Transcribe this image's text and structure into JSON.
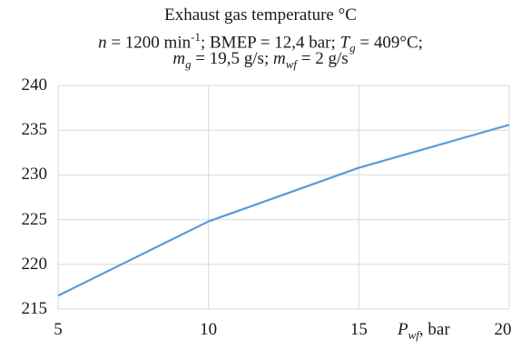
{
  "chart_data": {
    "type": "line",
    "title_lines": [
      "Exhaust gas temperature °C",
      "n = 1200 min-1; BMEP = 12,4 bar; Tg = 409°C;",
      "mg = 19,5 g/s; mwf = 2 g/s"
    ],
    "title_parts": {
      "line1": "Exhaust gas temperature °C",
      "n_sym": "n",
      "n_val": " = 1200 min",
      "n_exp": "-1",
      "bmep": "; BMEP = 12,4 bar; ",
      "tg_sym": "T",
      "tg_sub": "g",
      "tg_val": " = 409°C;",
      "mg_sym": "m",
      "mg_sub": "g",
      "mg_val": " = 19,5 g/s; ",
      "mwf_sym": "m",
      "mwf_sub": "wf",
      "mwf_val": " = 2 g/s"
    },
    "xlabel_parts": {
      "sym": "P",
      "sub": "wf",
      "rest": ", bar"
    },
    "x": [
      5,
      10,
      15,
      20
    ],
    "x_tick_labels": [
      "5",
      "10",
      "15",
      "20"
    ],
    "y_tick_labels": [
      "215",
      "220",
      "225",
      "230",
      "235",
      "240"
    ],
    "y_ticks": [
      215,
      220,
      225,
      230,
      235,
      240
    ],
    "series": [
      {
        "values": [
          216.5,
          224.8,
          230.8,
          235.6
        ],
        "color": "#5b9bd5"
      }
    ],
    "xlim": [
      5,
      20
    ],
    "ylim": [
      215,
      240
    ],
    "grid": true
  }
}
